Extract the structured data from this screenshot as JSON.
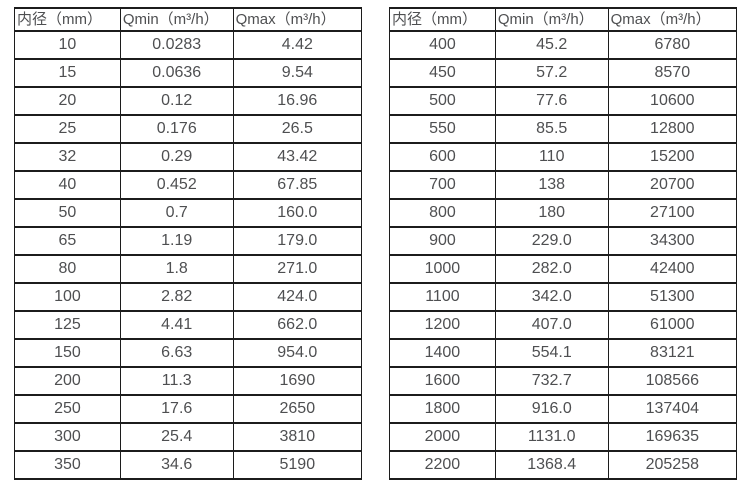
{
  "tables": [
    {
      "name": "flow-range-small-diameters",
      "headers": [
        "内径（mm）",
        "Qmin（m³/h）",
        "Qmax（m³/h）"
      ],
      "rows": [
        [
          "10",
          "0.0283",
          "4.42"
        ],
        [
          "15",
          "0.0636",
          "9.54"
        ],
        [
          "20",
          "0.12",
          "16.96"
        ],
        [
          "25",
          "0.176",
          "26.5"
        ],
        [
          "32",
          "0.29",
          "43.42"
        ],
        [
          "40",
          "0.452",
          "67.85"
        ],
        [
          "50",
          "0.7",
          "160.0"
        ],
        [
          "65",
          "1.19",
          "179.0"
        ],
        [
          "80",
          "1.8",
          "271.0"
        ],
        [
          "100",
          "2.82",
          "424.0"
        ],
        [
          "125",
          "4.41",
          "662.0"
        ],
        [
          "150",
          "6.63",
          "954.0"
        ],
        [
          "200",
          "11.3",
          "1690"
        ],
        [
          "250",
          "17.6",
          "2650"
        ],
        [
          "300",
          "25.4",
          "3810"
        ],
        [
          "350",
          "34.6",
          "5190"
        ]
      ]
    },
    {
      "name": "flow-range-large-diameters",
      "headers": [
        "内径（mm）",
        "Qmin（m³/h）",
        "Qmax（m³/h）"
      ],
      "rows": [
        [
          "400",
          "45.2",
          "6780"
        ],
        [
          "450",
          "57.2",
          "8570"
        ],
        [
          "500",
          "77.6",
          "10600"
        ],
        [
          "550",
          "85.5",
          "12800"
        ],
        [
          "600",
          "110",
          "15200"
        ],
        [
          "700",
          "138",
          "20700"
        ],
        [
          "800",
          "180",
          "27100"
        ],
        [
          "900",
          "229.0",
          "34300"
        ],
        [
          "1000",
          "282.0",
          "42400"
        ],
        [
          "1100",
          "342.0",
          "51300"
        ],
        [
          "1200",
          "407.0",
          "61000"
        ],
        [
          "1400",
          "554.1",
          "83121"
        ],
        [
          "1600",
          "732.7",
          "108566"
        ],
        [
          "1800",
          "916.0",
          "137404"
        ],
        [
          "2000",
          "1131.0",
          "169635"
        ],
        [
          "2200",
          "1368.4",
          "205258"
        ]
      ]
    }
  ],
  "colors": {
    "border": "#1c1c1c",
    "text": "#4e4f51",
    "background": "#ffffff"
  }
}
